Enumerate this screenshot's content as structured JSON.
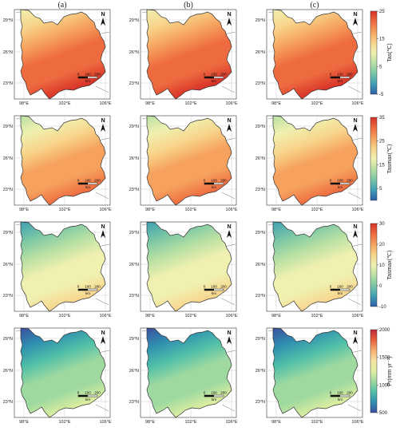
{
  "columns": [
    "(a)",
    "(b)",
    "(c)"
  ],
  "lat_labels": [
    "29°N",
    "26°N",
    "23°N"
  ],
  "lon_labels": [
    "98°E",
    "102°E",
    "106°E"
  ],
  "north_label": "N",
  "scale_bar": {
    "ticks": [
      "0",
      "100",
      "200"
    ],
    "unit": "km"
  },
  "rows": [
    {
      "variable": "Tas(℃)",
      "colorbar": {
        "min": -5,
        "max": 25,
        "ticks": [
          "25",
          "15",
          "5",
          "-5"
        ]
      },
      "ramp": [
        "#2b5fa8",
        "#3f9fb5",
        "#79c6a5",
        "#b8e0a3",
        "#f0f0b0",
        "#f8d48a",
        "#f6a25e",
        "#ee6b3f",
        "#d73027"
      ],
      "fill_levels": [
        0.85,
        0.85,
        0.85
      ]
    },
    {
      "variable": "Tasmax(℃)",
      "colorbar": {
        "min": 0,
        "max": 35,
        "ticks": [
          "35",
          "25",
          "15",
          "5"
        ]
      },
      "ramp": [
        "#2b5fa8",
        "#3f9fb5",
        "#79c6a5",
        "#b8e0a3",
        "#f0f0b0",
        "#f8d48a",
        "#f6a25e",
        "#ee6b3f",
        "#d73027"
      ],
      "fill_levels": [
        0.8,
        0.8,
        0.82
      ]
    },
    {
      "variable": "Tasmax(℃)",
      "colorbar": {
        "min": -10,
        "max": 30,
        "ticks": [
          "30",
          "20",
          "10",
          "0",
          "-10"
        ]
      },
      "ramp": [
        "#2b5fa8",
        "#3f9fb5",
        "#79c6a5",
        "#b8e0a3",
        "#f0f0b0",
        "#f8d48a",
        "#f6a25e",
        "#ee6b3f",
        "#d73027"
      ],
      "fill_levels": [
        0.55,
        0.55,
        0.55
      ]
    },
    {
      "variable": "Pr(mm yr⁻¹)",
      "colorbar": {
        "min": 500,
        "max": 2000,
        "ticks": [
          "2000",
          "1500",
          "1000",
          "500"
        ]
      },
      "ramp": [
        "#3b4fa0",
        "#2f8fb0",
        "#4fbfa8",
        "#9ed9a0",
        "#e0efa0",
        "#f6e2a0",
        "#f8b070",
        "#e8603c",
        "#c2263a"
      ],
      "fill_levels": [
        0.4,
        0.38,
        0.4
      ]
    }
  ]
}
